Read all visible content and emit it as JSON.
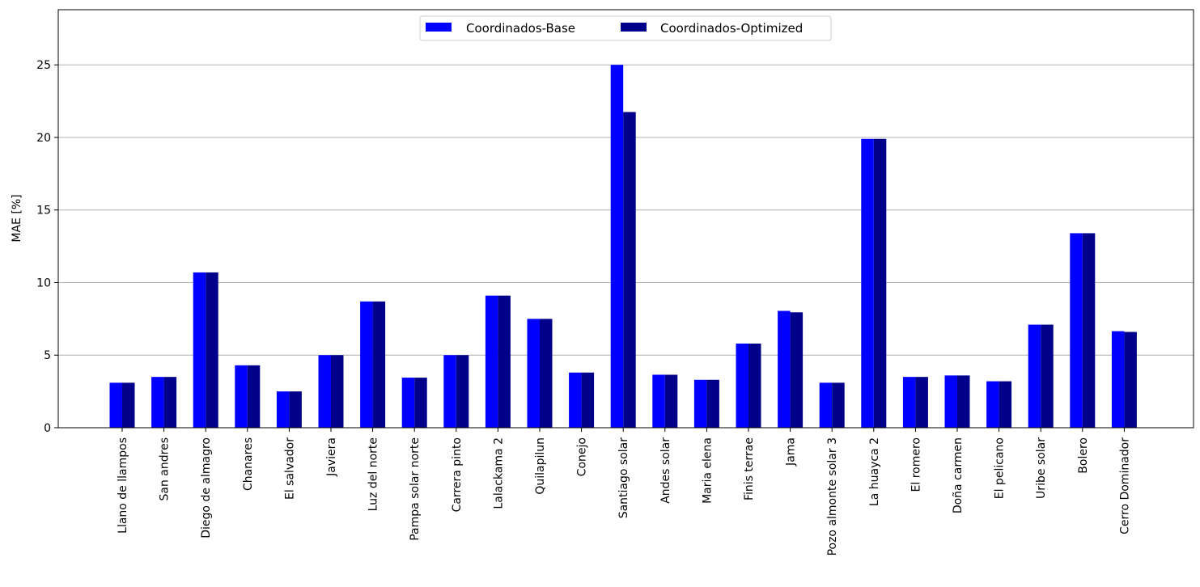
{
  "chart_data": {
    "type": "bar",
    "title": "",
    "xlabel": "",
    "ylabel": "MAE [%]",
    "ylim": [
      0,
      28.8
    ],
    "yticks": [
      0,
      5,
      10,
      15,
      20,
      25
    ],
    "grid": "y",
    "legend_position": "top-center",
    "categories": [
      "Llano de llampos",
      "San andres",
      "Diego de almagro",
      "Chanares",
      "El salvador",
      "Javiera",
      "Luz del norte",
      "Pampa solar norte",
      "Carrera pinto",
      "Lalackama 2",
      "Quilapilun",
      "Conejo",
      "Santiago solar",
      "Andes solar",
      "Maria elena",
      "Finis terrae",
      "Jama",
      "Pozo almonte solar 3",
      "La huayca 2",
      "El romero",
      "Doña carmen",
      "El pelicano",
      "Uribe solar",
      "Bolero",
      "Cerro Dominador"
    ],
    "series": [
      {
        "name": "Coordinados-Base",
        "color": "#0000ff",
        "values": [
          3.1,
          3.5,
          10.7,
          4.3,
          2.5,
          5.0,
          8.7,
          3.45,
          5.0,
          9.1,
          7.5,
          3.8,
          25.0,
          3.65,
          3.3,
          5.8,
          8.05,
          3.1,
          19.9,
          3.5,
          3.6,
          3.2,
          7.1,
          13.4,
          6.65
        ]
      },
      {
        "name": "Coordinados-Optimized",
        "color": "#00008b",
        "values": [
          3.1,
          3.5,
          10.7,
          4.3,
          2.5,
          5.0,
          8.7,
          3.45,
          5.0,
          9.1,
          7.5,
          3.8,
          21.75,
          3.65,
          3.3,
          5.8,
          7.95,
          3.1,
          19.9,
          3.5,
          3.6,
          3.2,
          7.1,
          13.4,
          6.6
        ]
      }
    ]
  }
}
